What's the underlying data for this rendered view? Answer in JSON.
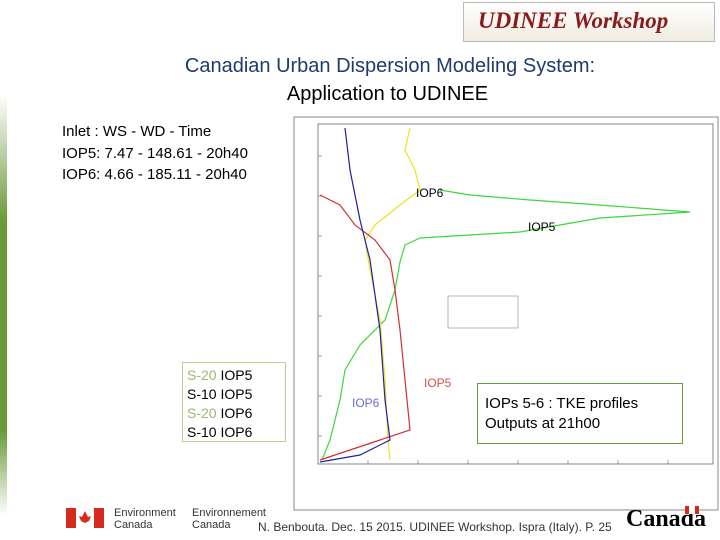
{
  "header": {
    "badge": "UDINEE Workshop",
    "title_line1": "Canadian Urban Dispersion Modeling System:",
    "title_line2": "Application to UDINEE"
  },
  "inlet": {
    "lines": [
      "Inlet : WS - WD - Time",
      "IOP5: 7.47 - 148.61 - 20h40",
      "IOP6: 4.66 - 185.11 - 20h40"
    ]
  },
  "legend_box": {
    "items": [
      {
        "prefix": "S-20",
        "label": "IOP5"
      },
      {
        "prefix": "S-10",
        "label": "IOP5"
      },
      {
        "prefix": "S-20",
        "label": "IOP6"
      },
      {
        "prefix": "S-10",
        "label": "IOP6"
      }
    ]
  },
  "plot": {
    "annotations": [
      "IOP6",
      "IOP5",
      "IOP6",
      "IOP5"
    ]
  },
  "caption": {
    "lines": [
      "IOPs 5-6 : TKE profiles",
      "Outputs at 21h00"
    ]
  },
  "footer": {
    "env_en": [
      "Environment",
      "Canada"
    ],
    "env_fr": [
      "Environnement",
      "Canada"
    ],
    "credit": "N. Benbouta. Dec. 15 2015. UDINEE Workshop. Ispra (Italy). P. 25",
    "wordmark": "Canada"
  }
}
